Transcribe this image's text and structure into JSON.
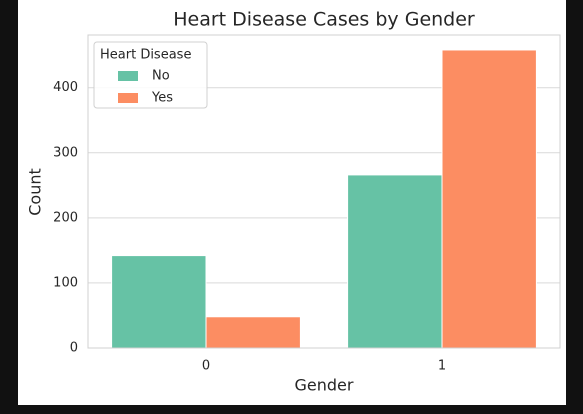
{
  "chart_data": {
    "type": "bar",
    "title": "Heart Disease Cases by Gender",
    "x_label": "Gender",
    "y_label": "Count",
    "categories": [
      "0",
      "1"
    ],
    "legend_title": "Heart Disease",
    "legend": "upper left",
    "series": [
      {
        "name": "No",
        "color": "#66c2a5",
        "values": [
          142,
          266
        ]
      },
      {
        "name": "Yes",
        "color": "#fc8d62",
        "values": [
          48,
          458
        ]
      }
    ],
    "ylim": [
      0,
      481
    ],
    "yticks": [
      0,
      100,
      200,
      300,
      400
    ],
    "grid": true
  }
}
